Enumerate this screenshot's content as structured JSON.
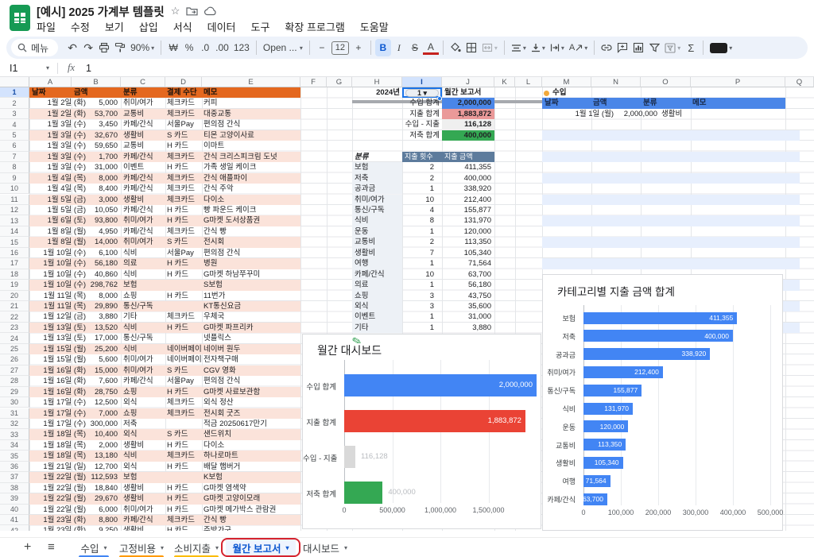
{
  "app": {
    "title": "[예시] 2025 가계부 템플릿",
    "menus": [
      "파일",
      "수정",
      "보기",
      "삽입",
      "서식",
      "데이터",
      "도구",
      "확장 프로그램",
      "도움말"
    ]
  },
  "icons": {
    "undo": "↶",
    "redo": "↷",
    "star": "☆",
    "caret": "▾",
    "pencil": "✎",
    "plus": "+",
    "hamburger": "≡"
  },
  "toolbar": {
    "search_label": "메뉴",
    "zoom_level": "90%",
    "currency": "₩",
    "percent": "%",
    "dec_decrease": ".0",
    "dec_increase": ".00",
    "format_123": "123",
    "font_name": "Open ...",
    "font_size": "12",
    "bold": "B",
    "italic": "I",
    "strikethrough": "S",
    "text_color": "A",
    "sigma": "Σ",
    "minus": "−",
    "plus": "+"
  },
  "formula_bar": {
    "cell_ref": "I1",
    "fx_label": "fx",
    "value": "1"
  },
  "grid": {
    "columns": [
      "A",
      "B",
      "C",
      "D",
      "E",
      "F",
      "G",
      "H",
      "I",
      "J",
      "K",
      "L",
      "M",
      "N",
      "O",
      "P",
      "Q"
    ],
    "selected_column": "I",
    "selected_row": 1,
    "visible_rows": 42
  },
  "expense_table": {
    "headers": [
      "날짜",
      "금액",
      "분류",
      "결제 수단",
      "메모"
    ],
    "header_bg": "#e4681f",
    "stripe_color": "#fbe3da",
    "rows": [
      [
        "1월 2일 (화)",
        "5,000",
        "취미/여가",
        "체크카드",
        "커피"
      ],
      [
        "1월 2일 (화)",
        "53,700",
        "교통비",
        "체크카드",
        "대중교통"
      ],
      [
        "1월 3일 (수)",
        "3,450",
        "카페/간식",
        "서울Pay",
        "편의점 간식"
      ],
      [
        "1월 3일 (수)",
        "32,670",
        "생활비",
        "S 카드",
        "티몬 고양이사료"
      ],
      [
        "1월 3일 (수)",
        "59,650",
        "교통비",
        "H 카드",
        "이마트"
      ],
      [
        "1월 3일 (수)",
        "1,700",
        "카페/간식",
        "체크카드",
        "간식 크리스피크림 도넛"
      ],
      [
        "1월 3일 (수)",
        "31,000",
        "이벤트",
        "H 카드",
        "가족 생일 케이크"
      ],
      [
        "1월 4일 (목)",
        "8,000",
        "카페/간식",
        "체크카드",
        "간식 애플파이"
      ],
      [
        "1월 4일 (목)",
        "8,400",
        "카페/간식",
        "체크카드",
        "간식 주악"
      ],
      [
        "1월 5일 (금)",
        "3,000",
        "생활비",
        "체크카드",
        "다이소"
      ],
      [
        "1월 5일 (금)",
        "10,050",
        "카페/간식",
        "H 카드",
        "빵 파운드 케이크"
      ],
      [
        "1월 6일 (토)",
        "93,800",
        "취미/여가",
        "H 카드",
        "G마켓 도서상품권"
      ],
      [
        "1월 8일 (월)",
        "4,950",
        "카페/간식",
        "체크카드",
        "간식 빵"
      ],
      [
        "1월 8일 (월)",
        "14,000",
        "취미/여가",
        "S 카드",
        "전시회"
      ],
      [
        "1월 10일 (수)",
        "6,100",
        "식비",
        "서울Pay",
        "편의점 간식"
      ],
      [
        "1월 10일 (수)",
        "56,180",
        "의료",
        "H 카드",
        "병원"
      ],
      [
        "1월 10일 (수)",
        "40,860",
        "식비",
        "H 카드",
        "G마켓 하남쭈꾸미"
      ],
      [
        "1월 10일 (수)",
        "298,762",
        "보험",
        "",
        "S보험"
      ],
      [
        "1월 11일 (목)",
        "8,000",
        "쇼핑",
        "H 카드",
        "11번가"
      ],
      [
        "1월 11일 (목)",
        "29,890",
        "통신/구독",
        "",
        "KT통신요금"
      ],
      [
        "1월 12일 (금)",
        "3,880",
        "기타",
        "체크카드",
        "우체국"
      ],
      [
        "1월 13일 (토)",
        "13,520",
        "식비",
        "H 카드",
        "G마켓 파프리카"
      ],
      [
        "1월 13일 (토)",
        "17,000",
        "통신/구독",
        "",
        "넷플릭스"
      ],
      [
        "1월 15일 (월)",
        "25,200",
        "식비",
        "네이버페이",
        "네이버 원두"
      ],
      [
        "1월 15일 (월)",
        "5,600",
        "취미/여가",
        "네이버페이",
        "전자책구매"
      ],
      [
        "1월 16일 (화)",
        "15,000",
        "취미/여가",
        "S 카드",
        "CGV 영화"
      ],
      [
        "1월 16일 (화)",
        "7,600",
        "카페/간식",
        "서울Pay",
        "편의점 간식"
      ],
      [
        "1월 16일 (화)",
        "28,750",
        "쇼핑",
        "H 카드",
        "G마켓 사료보관함"
      ],
      [
        "1월 17일 (수)",
        "12,500",
        "외식",
        "체크카드",
        "외식 정산"
      ],
      [
        "1월 17일 (수)",
        "7,000",
        "쇼핑",
        "체크카드",
        "전시회 굿즈"
      ],
      [
        "1월 17일 (수)",
        "300,000",
        "저축",
        "",
        "적금 20250617만기"
      ],
      [
        "1월 18일 (목)",
        "10,400",
        "외식",
        "S 카드",
        "샌드위치"
      ],
      [
        "1월 18일 (목)",
        "2,000",
        "생활비",
        "H 카드",
        "다이소"
      ],
      [
        "1월 18일 (목)",
        "13,180",
        "식비",
        "체크카드",
        "하나로마트"
      ],
      [
        "1월 21일 (일)",
        "12,700",
        "외식",
        "H 카드",
        "배달 햄버거"
      ],
      [
        "1월 22일 (월)",
        "112,593",
        "보험",
        "",
        "K보험"
      ],
      [
        "1월 22일 (월)",
        "18,840",
        "생활비",
        "H 카드",
        "G마켓 염색약"
      ],
      [
        "1월 22일 (월)",
        "29,670",
        "생활비",
        "H 카드",
        "G마켓 고양이모래"
      ],
      [
        "1월 22일 (월)",
        "6,000",
        "취미/여가",
        "H 카드",
        "G마켓 메가박스 관람권"
      ],
      [
        "1월 23일 (화)",
        "8,800",
        "카페/간식",
        "체크카드",
        "간식 빵"
      ],
      [
        "1월 23일 (화)",
        "9,250",
        "생활비",
        "H 카드",
        "주방가구"
      ]
    ]
  },
  "report": {
    "year": "2024년",
    "month": "1",
    "title": "월간 보고서",
    "summary": [
      {
        "label": "수입 합계",
        "value": "2,000,000",
        "bg": "#4a86e8"
      },
      {
        "label": "지출 합계",
        "value": "1,883,872",
        "bg": "#ea9999"
      },
      {
        "label": "수입 - 지출",
        "value": "116,128",
        "bg": "#efefef"
      },
      {
        "label": "저축 합계",
        "value": "400,000",
        "bg": "#34a853"
      }
    ],
    "category_table": {
      "headers": [
        "분류",
        "지출 횟수",
        "지출 금액"
      ],
      "header_bg": "#5d7b9c",
      "label_col_bg": "#edf1f6",
      "rows": [
        [
          "보험",
          "2",
          "411,355"
        ],
        [
          "저축",
          "2",
          "400,000"
        ],
        [
          "공과금",
          "1",
          "338,920"
        ],
        [
          "취미/여가",
          "10",
          "212,400"
        ],
        [
          "통신/구독",
          "4",
          "155,877"
        ],
        [
          "식비",
          "8",
          "131,970"
        ],
        [
          "운동",
          "1",
          "120,000"
        ],
        [
          "교통비",
          "2",
          "113,350"
        ],
        [
          "생활비",
          "7",
          "105,340"
        ],
        [
          "여행",
          "1",
          "71,564"
        ],
        [
          "카페/간식",
          "10",
          "63,700"
        ],
        [
          "의료",
          "1",
          "56,180"
        ],
        [
          "쇼핑",
          "3",
          "43,750"
        ],
        [
          "외식",
          "3",
          "35,600"
        ],
        [
          "이벤트",
          "1",
          "31,000"
        ],
        [
          "기타",
          "1",
          "3,880"
        ]
      ]
    }
  },
  "income_table": {
    "legend": "수입",
    "legend_color": "#f2a93b",
    "headers": [
      "날짜",
      "금액",
      "분류",
      "메모"
    ],
    "header_bg": "#4a86e8",
    "stripe_color": "#e7effd",
    "rows": [
      [
        "1월 1일 (월)",
        "2,000,000",
        "생활비",
        ""
      ]
    ]
  },
  "chart_data": [
    {
      "type": "bar",
      "orientation": "horizontal",
      "title": "월간 대시보드",
      "categories": [
        "수입 합계",
        "지출 합계",
        "수입 - 지출",
        "저축 합계"
      ],
      "values": [
        2000000,
        1883872,
        116128,
        400000
      ],
      "value_labels": [
        "2,000,000",
        "1,883,872",
        "116,128",
        "400,000"
      ],
      "bar_colors": [
        "#4285f4",
        "#ea4335",
        "#d9d9d9",
        "#34a853"
      ],
      "x_ticks": [
        0,
        500000,
        1000000,
        1500000
      ],
      "x_tick_labels": [
        "0",
        "500,000",
        "1,000,000",
        "1,500,000"
      ],
      "xlim": [
        0,
        2050000
      ],
      "grid": true,
      "legend": "none"
    },
    {
      "type": "bar",
      "orientation": "horizontal",
      "title": "카테고리별 지출 금액 합계",
      "categories": [
        "보험",
        "저축",
        "공과금",
        "취미/여가",
        "통신/구독",
        "식비",
        "운동",
        "교통비",
        "생활비",
        "여행",
        "카페/간식"
      ],
      "values": [
        411355,
        400000,
        338920,
        212400,
        155877,
        131970,
        120000,
        113350,
        105340,
        71564,
        63700
      ],
      "value_labels": [
        "411,355",
        "400,000",
        "338,920",
        "212,400",
        "155,877",
        "131,970",
        "120,000",
        "113,350",
        "105,340",
        "71,564",
        "63,700"
      ],
      "bar_colors": [
        "#4285f4"
      ],
      "x_ticks": [
        0,
        100000,
        200000,
        300000,
        400000,
        500000
      ],
      "x_tick_labels": [
        "0",
        "100,000",
        "200,000",
        "300,000",
        "400,000",
        "500,000"
      ],
      "xlim": [
        0,
        500000
      ],
      "grid": true,
      "legend": "none"
    }
  ],
  "sheet_tabs": {
    "tabs": [
      {
        "label": "수입",
        "underline": "#4285f4"
      },
      {
        "label": "고정비용",
        "underline": "#ff9900"
      },
      {
        "label": "소비지출",
        "underline": "#fbbc04"
      },
      {
        "label": "월간 보고서",
        "active": true,
        "highlight_box": "#d5232e"
      },
      {
        "label": "대시보드"
      }
    ]
  }
}
